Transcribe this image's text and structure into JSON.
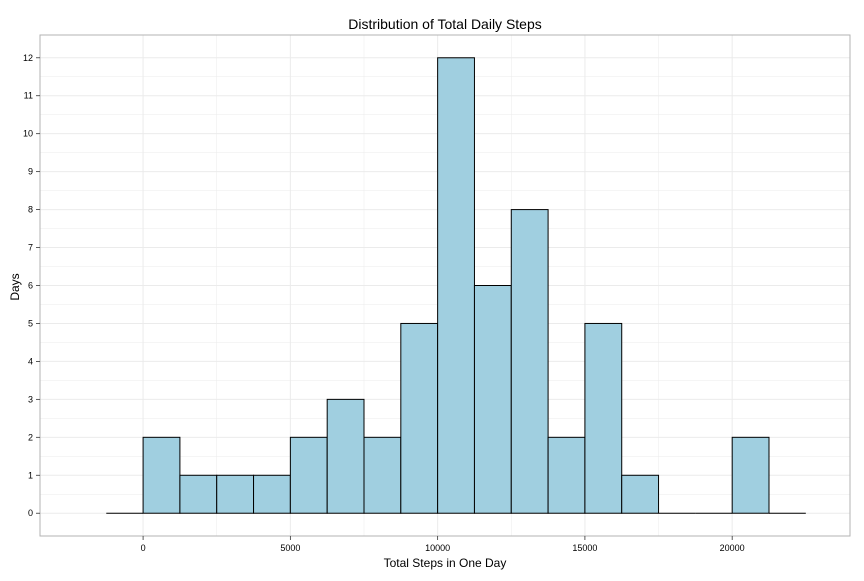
{
  "chart_data": {
    "type": "bar",
    "title": "Distribution of Total Daily Steps",
    "xlabel": "Total Steps in One Day",
    "ylabel": "Days",
    "bin_width": 1250,
    "bins": [
      {
        "start": -1250,
        "end": 0,
        "count": 0
      },
      {
        "start": 0,
        "end": 1250,
        "count": 2
      },
      {
        "start": 1250,
        "end": 2500,
        "count": 1
      },
      {
        "start": 2500,
        "end": 3750,
        "count": 1
      },
      {
        "start": 3750,
        "end": 5000,
        "count": 1
      },
      {
        "start": 5000,
        "end": 6250,
        "count": 2
      },
      {
        "start": 6250,
        "end": 7500,
        "count": 3
      },
      {
        "start": 7500,
        "end": 8750,
        "count": 2
      },
      {
        "start": 8750,
        "end": 10000,
        "count": 5
      },
      {
        "start": 10000,
        "end": 11250,
        "count": 12
      },
      {
        "start": 11250,
        "end": 12500,
        "count": 6
      },
      {
        "start": 12500,
        "end": 13750,
        "count": 8
      },
      {
        "start": 13750,
        "end": 15000,
        "count": 2
      },
      {
        "start": 15000,
        "end": 16250,
        "count": 5
      },
      {
        "start": 16250,
        "end": 17500,
        "count": 1
      },
      {
        "start": 17500,
        "end": 18750,
        "count": 0
      },
      {
        "start": 18750,
        "end": 20000,
        "count": 0
      },
      {
        "start": 20000,
        "end": 21250,
        "count": 2
      },
      {
        "start": 21250,
        "end": 22500,
        "count": 0
      }
    ],
    "xlim": [
      -3500,
      24000
    ],
    "ylim": [
      -0.6,
      12.6
    ],
    "x_ticks": [
      0,
      5000,
      10000,
      15000,
      20000
    ],
    "x_tick_labels": [
      "0",
      "5000",
      "10000",
      "15000",
      "20000"
    ],
    "y_ticks": [
      0,
      1,
      2,
      3,
      4,
      5,
      6,
      7,
      8,
      9,
      10,
      11,
      12
    ],
    "y_tick_labels": [
      "0",
      "1",
      "2",
      "3",
      "4",
      "5",
      "6",
      "7",
      "8",
      "9",
      "10",
      "11",
      "12"
    ],
    "grid": true,
    "colors": {
      "bar_fill": "#a0cfe0",
      "bar_stroke": "#000000",
      "grid": "#ebebeb",
      "panel_border": "#b3b3b3",
      "background": "#ffffff"
    }
  }
}
